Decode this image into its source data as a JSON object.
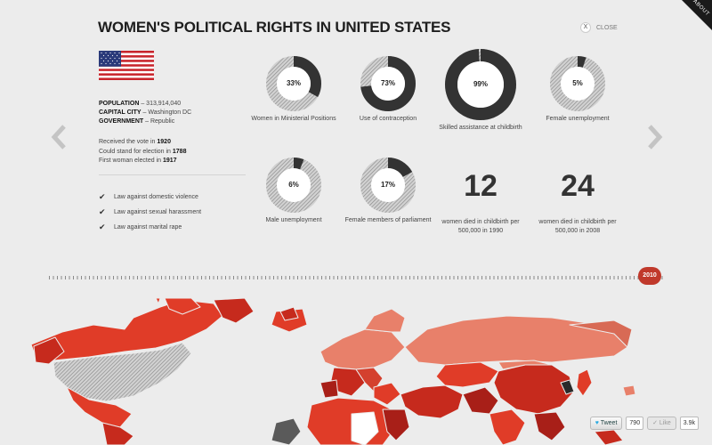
{
  "header": {
    "title": "WOMEN'S POLITICAL RIGHTS IN UNITED STATES",
    "close_label": "CLOSE",
    "close_icon": "X",
    "about_label": "ABOUT"
  },
  "country": {
    "population_label": "POPULATION",
    "population": "313,914,040",
    "capital_label": "CAPITAL CITY",
    "capital": "Washington DC",
    "government_label": "GOVERNMENT",
    "government": "Republic",
    "vote_text": "Received the vote in",
    "vote_year": "1920",
    "election_text": "Could stand for election in",
    "election_year": "1788",
    "first_woman_text": "First woman elected in",
    "first_woman_year": "1917"
  },
  "laws": [
    {
      "label": "Law against domestic violence",
      "icon": "check-icon"
    },
    {
      "label": "Law against sexual harassment",
      "icon": "check-icon"
    },
    {
      "label": "Law against marital rape",
      "icon": "check-icon"
    }
  ],
  "stats": [
    {
      "label": "Women in Ministerial Positions",
      "value": "33%",
      "fraction": 0.33
    },
    {
      "label": "Use of contraception",
      "value": "73%",
      "fraction": 0.73
    },
    {
      "label": "Skilled assistance at childbirth",
      "value": "99%",
      "fraction": 0.99
    },
    {
      "label": "Female unemployment",
      "value": "5%",
      "fraction": 0.05
    },
    {
      "label": "Male unemployment",
      "value": "6%",
      "fraction": 0.06
    },
    {
      "label": "Female members of parliament",
      "value": "17%",
      "fraction": 0.17
    },
    {
      "label": "women died in childbirth per 500,000 in 1990",
      "value": "12"
    },
    {
      "label": "women died in childbirth per 500,000 in 2008",
      "value": "24"
    }
  ],
  "timeline": {
    "year": "2010"
  },
  "social": {
    "tweet_label": "Tweet",
    "tweet_count": "790",
    "like_label": "Like",
    "like_count": "3.9k"
  },
  "colors": {
    "background": "#ececec",
    "accent": "#c0392b",
    "ring_dark": "#333333",
    "map_light": "#e8806a",
    "map_mid": "#d9472f",
    "map_dark": "#a81f18"
  }
}
